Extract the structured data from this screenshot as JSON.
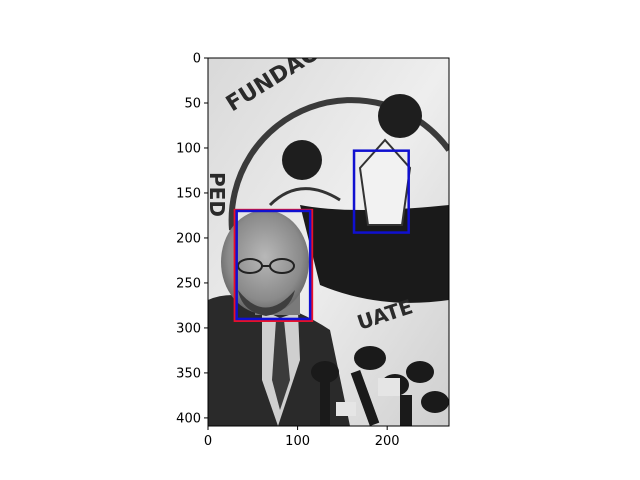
{
  "chart_data": {
    "type": "image",
    "image_description_token": "grayscale-photo-man-at-press-conference",
    "xlim": [
      0,
      269
    ],
    "ylim": [
      409,
      0
    ],
    "x_ticks": [
      0,
      100,
      200
    ],
    "y_ticks": [
      0,
      50,
      100,
      150,
      200,
      250,
      300,
      350,
      400
    ],
    "xlabel": "",
    "ylabel": "",
    "title": "",
    "boxes": [
      {
        "color": "#e8102a",
        "x": [
          30,
          116
        ],
        "y": [
          169,
          292
        ]
      },
      {
        "color": "#1010d0",
        "x": [
          32,
          114
        ],
        "y": [
          170,
          290
        ]
      },
      {
        "color": "#1010d0",
        "x": [
          163,
          224
        ],
        "y": [
          103,
          194
        ]
      }
    ],
    "logo_text": [
      "FUNDACION",
      "PED",
      "UATE"
    ]
  }
}
